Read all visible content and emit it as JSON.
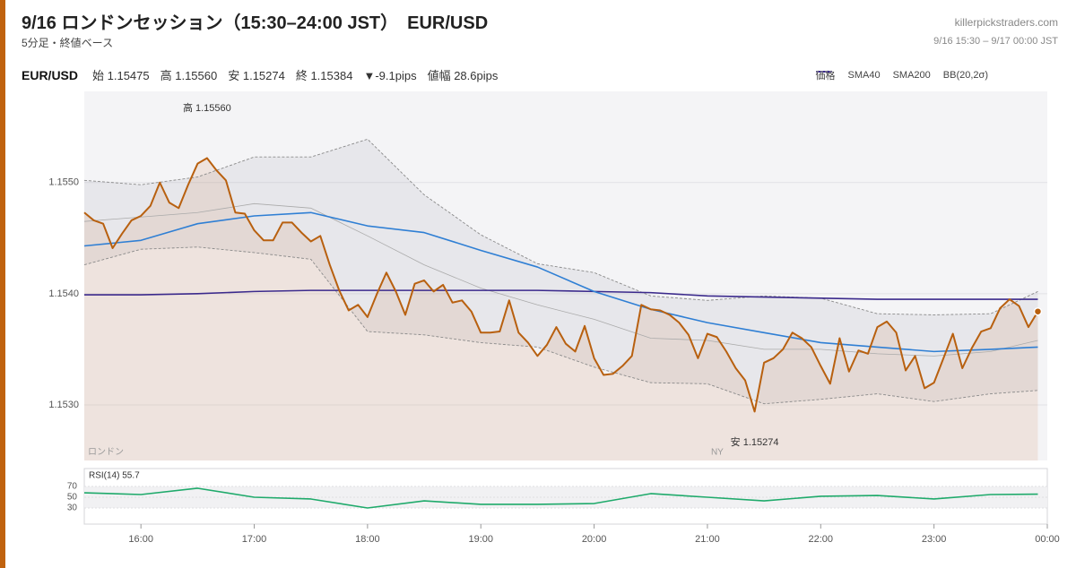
{
  "header": {
    "title": "9/16 ロンドンセッション（15:30–24:00 JST）　EUR/USD",
    "subtitle": "5分足・終値ベース",
    "site": "killerpickstraders.com",
    "range": "9/16 15:30 – 9/17 00:00 JST"
  },
  "stats": {
    "symbol": "EUR/USD",
    "items": [
      "始 1.15475",
      "高 1.15560",
      "安 1.15274",
      "終 1.15384",
      "▼-9.1pips",
      "値幅 28.6pips"
    ]
  },
  "chart_data": [
    {
      "type": "line",
      "xlim": [
        930,
        1440
      ],
      "ylim": [
        1.1525,
        1.15582
      ],
      "yticks": [
        {
          "value": 1.153,
          "label": "1.1530"
        },
        {
          "value": 1.154,
          "label": "1.1540"
        },
        {
          "value": 1.155,
          "label": "1.1550"
        }
      ],
      "grid": true,
      "x": [
        930,
        935,
        940,
        945,
        950,
        955,
        960,
        965,
        970,
        975,
        980,
        985,
        990,
        995,
        1000,
        1005,
        1010,
        1015,
        1020,
        1025,
        1030,
        1035,
        1040,
        1045,
        1050,
        1055,
        1060,
        1065,
        1070,
        1075,
        1080,
        1085,
        1090,
        1095,
        1100,
        1105,
        1110,
        1115,
        1120,
        1125,
        1130,
        1135,
        1140,
        1145,
        1150,
        1155,
        1160,
        1165,
        1170,
        1175,
        1180,
        1185,
        1190,
        1195,
        1200,
        1205,
        1210,
        1215,
        1220,
        1225,
        1230,
        1235,
        1240,
        1245,
        1250,
        1255,
        1260,
        1265,
        1270,
        1275,
        1280,
        1285,
        1290,
        1295,
        1300,
        1305,
        1310,
        1315,
        1320,
        1325,
        1330,
        1335,
        1340,
        1345,
        1350,
        1355,
        1360,
        1365,
        1370,
        1375,
        1380,
        1385,
        1390,
        1395,
        1400,
        1405,
        1410,
        1415,
        1420,
        1425,
        1430,
        1435
      ],
      "series": [
        {
          "name": "価格",
          "color": "#b8600f",
          "area": true,
          "last_marker": true,
          "values": [
            1.15473,
            1.15466,
            1.15463,
            1.15441,
            1.15454,
            1.15466,
            1.1547,
            1.15479,
            1.155,
            1.15482,
            1.15477,
            1.15498,
            1.15517,
            1.15522,
            1.15511,
            1.15502,
            1.15473,
            1.15472,
            1.15457,
            1.15448,
            1.15448,
            1.15464,
            1.15464,
            1.15455,
            1.15447,
            1.15452,
            1.15426,
            1.15403,
            1.15385,
            1.1539,
            1.15379,
            1.154,
            1.15419,
            1.15402,
            1.15381,
            1.15409,
            1.15412,
            1.15402,
            1.15408,
            1.15392,
            1.15394,
            1.15384,
            1.15365,
            1.15365,
            1.15366,
            1.15394,
            1.15365,
            1.15356,
            1.15344,
            1.15354,
            1.1537,
            1.15355,
            1.15348,
            1.15371,
            1.15342,
            1.15327,
            1.15328,
            1.15335,
            1.15344,
            1.1539,
            1.15386,
            1.15385,
            1.15381,
            1.15374,
            1.15363,
            1.15342,
            1.15364,
            1.15361,
            1.15348,
            1.15333,
            1.15322,
            1.15294,
            1.15338,
            1.15342,
            1.1535,
            1.15365,
            1.1536,
            1.15352,
            1.15335,
            1.15319,
            1.1536,
            1.1533,
            1.15349,
            1.15346,
            1.1537,
            1.15375,
            1.15365,
            1.15331,
            1.15344,
            1.15315,
            1.1532,
            1.15342,
            1.15364,
            1.15333,
            1.15351,
            1.15366,
            1.15369,
            1.15387,
            1.15395,
            1.15389,
            1.1537,
            1.15384
          ]
        },
        {
          "name": "SMA40",
          "color": "#2f7fd4",
          "x": [
            930,
            960,
            990,
            1020,
            1050,
            1080,
            1110,
            1140,
            1170,
            1200,
            1230,
            1260,
            1290,
            1320,
            1350,
            1380,
            1410,
            1435
          ],
          "values": [
            1.15443,
            1.15448,
            1.15463,
            1.1547,
            1.15473,
            1.15461,
            1.15455,
            1.15439,
            1.15424,
            1.15402,
            1.15386,
            1.15374,
            1.15365,
            1.15356,
            1.15352,
            1.15348,
            1.1535,
            1.15352
          ]
        },
        {
          "name": "SMA200",
          "color": "#3b2a8c",
          "x": [
            930,
            960,
            990,
            1020,
            1050,
            1080,
            1110,
            1140,
            1170,
            1200,
            1230,
            1260,
            1290,
            1320,
            1350,
            1380,
            1410,
            1435
          ],
          "values": [
            1.15399,
            1.15399,
            1.154,
            1.15402,
            1.15403,
            1.15403,
            1.15403,
            1.15403,
            1.15403,
            1.15402,
            1.15401,
            1.15398,
            1.15397,
            1.15396,
            1.15395,
            1.15395,
            1.15395,
            1.15395
          ]
        },
        {
          "name": "BB(20,2σ)",
          "color": "#8a8a8a",
          "dashed": true,
          "x": [
            930,
            960,
            990,
            1020,
            1050,
            1080,
            1110,
            1140,
            1170,
            1200,
            1230,
            1260,
            1290,
            1320,
            1350,
            1380,
            1410,
            1435
          ],
          "upper": [
            1.15502,
            1.15498,
            1.15505,
            1.15523,
            1.15523,
            1.15539,
            1.15489,
            1.15453,
            1.15427,
            1.15419,
            1.15398,
            1.15394,
            1.15398,
            1.15396,
            1.15382,
            1.15381,
            1.15382,
            1.15402
          ],
          "middle": [
            1.15465,
            1.15469,
            1.15473,
            1.15481,
            1.15477,
            1.15452,
            1.15426,
            1.15405,
            1.1539,
            1.15377,
            1.1536,
            1.15358,
            1.1535,
            1.1535,
            1.15346,
            1.15344,
            1.15348,
            1.15358
          ],
          "lower": [
            1.15426,
            1.1544,
            1.15442,
            1.15437,
            1.15431,
            1.15366,
            1.15363,
            1.15356,
            1.15352,
            1.15334,
            1.1532,
            1.15319,
            1.15301,
            1.15305,
            1.1531,
            1.15303,
            1.1531,
            1.15313
          ]
        }
      ],
      "annotations": [
        {
          "text": "高 1.15560",
          "x": 995,
          "y": 1.1556
        },
        {
          "text": "安 1.15274",
          "x": 1285,
          "y": 1.15274
        }
      ],
      "sessions": [
        {
          "label": "ロンドン",
          "x": 930
        },
        {
          "label": "NY",
          "x": 1260
        }
      ]
    },
    {
      "type": "line",
      "title": "RSI(14) 55.7",
      "xlim": [
        930,
        1440
      ],
      "ylim": [
        0,
        100
      ],
      "yticks": [
        30,
        50,
        70
      ],
      "band": [
        30,
        70
      ],
      "xticks": [
        {
          "value": 960,
          "label": "16:00"
        },
        {
          "value": 1020,
          "label": "17:00"
        },
        {
          "value": 1080,
          "label": "18:00"
        },
        {
          "value": 1140,
          "label": "19:00"
        },
        {
          "value": 1200,
          "label": "20:00"
        },
        {
          "value": 1260,
          "label": "21:00"
        },
        {
          "value": 1320,
          "label": "22:00"
        },
        {
          "value": 1380,
          "label": "23:00"
        },
        {
          "value": 1440,
          "label": "00:00"
        }
      ],
      "x": [
        930,
        960,
        990,
        1020,
        1050,
        1080,
        1110,
        1140,
        1170,
        1200,
        1230,
        1260,
        1290,
        1320,
        1350,
        1380,
        1410,
        1435
      ],
      "series": [
        {
          "color": "#1faa6b",
          "values": [
            58.3,
            55,
            66.7,
            50,
            46.7,
            30,
            43.3,
            36.7,
            36.7,
            38.3,
            56.7,
            50,
            43.3,
            51.7,
            53.3,
            46.7,
            55,
            55.7
          ]
        }
      ]
    }
  ]
}
